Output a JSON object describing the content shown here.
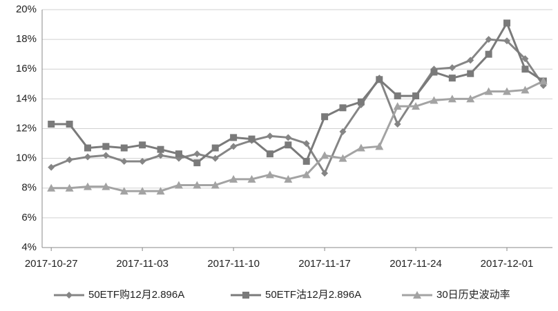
{
  "chart_data": {
    "type": "line",
    "categories": [
      "2017-10-27",
      null,
      null,
      null,
      null,
      "2017-11-03",
      null,
      null,
      null,
      null,
      "2017-11-10",
      null,
      null,
      null,
      null,
      "2017-11-17",
      null,
      null,
      null,
      null,
      "2017-11-24",
      null,
      null,
      null,
      null,
      "2017-12-01",
      null,
      null
    ],
    "series": [
      {
        "name": "50ETF购12月2.896A",
        "color": "#858585",
        "marker": "diamond",
        "values": [
          9.4,
          9.9,
          10.1,
          10.2,
          9.8,
          9.8,
          10.2,
          10.0,
          10.3,
          10.0,
          10.8,
          11.2,
          11.5,
          11.4,
          11.0,
          9.0,
          11.8,
          13.6,
          15.4,
          12.3,
          14.2,
          16.0,
          16.1,
          16.6,
          18.0,
          17.9,
          16.7,
          14.9
        ]
      },
      {
        "name": "50ETF沽12月2.896A",
        "color": "#7a7a7a",
        "marker": "square",
        "values": [
          12.3,
          12.3,
          10.7,
          10.8,
          10.7,
          10.9,
          10.6,
          10.3,
          9.7,
          10.7,
          11.4,
          11.3,
          10.3,
          10.9,
          9.8,
          12.8,
          13.4,
          13.8,
          15.3,
          14.2,
          14.2,
          15.8,
          15.4,
          15.7,
          17.0,
          19.1,
          16.0,
          15.2
        ]
      },
      {
        "name": "30日历史波动率",
        "color": "#a3a3a3",
        "marker": "triangle",
        "values": [
          8.0,
          8.0,
          8.1,
          8.1,
          7.8,
          7.8,
          7.8,
          8.2,
          8.2,
          8.2,
          8.6,
          8.6,
          8.9,
          8.6,
          8.9,
          10.2,
          10.0,
          10.7,
          10.8,
          13.5,
          13.5,
          13.9,
          14.0,
          14.0,
          14.5,
          14.5,
          14.6,
          15.2
        ]
      }
    ],
    "ylim": [
      4,
      20
    ],
    "yticks": [
      {
        "value": 4,
        "label": "4%"
      },
      {
        "value": 6,
        "label": "6%"
      },
      {
        "value": 8,
        "label": "8%"
      },
      {
        "value": 10,
        "label": "10%"
      },
      {
        "value": 12,
        "label": "12%"
      },
      {
        "value": 14,
        "label": "14%"
      },
      {
        "value": 16,
        "label": "16%"
      },
      {
        "value": 18,
        "label": "18%"
      },
      {
        "value": 20,
        "label": "20%"
      }
    ],
    "grid": true,
    "legend": "bottom"
  }
}
